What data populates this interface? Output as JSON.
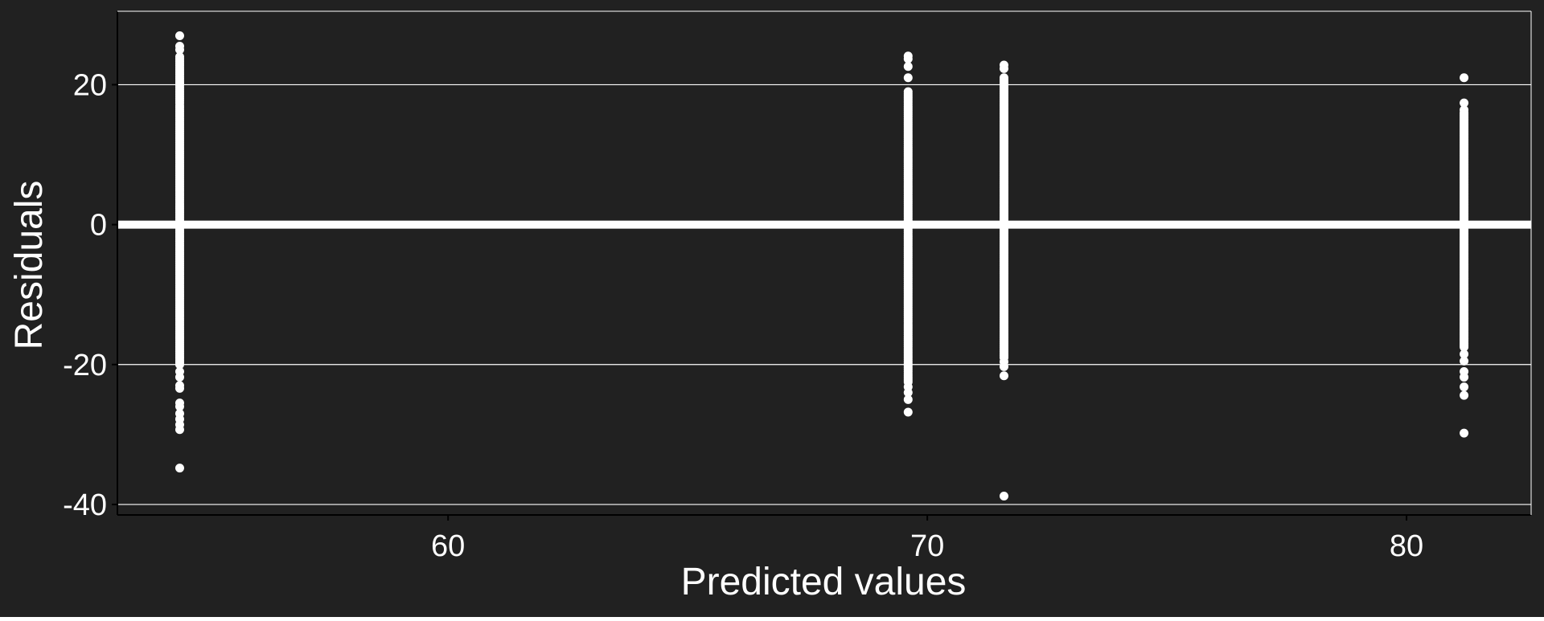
{
  "chart_data": {
    "type": "scatter",
    "title": "",
    "xlabel": "Predicted values",
    "ylabel": "Residuals",
    "xlim": [
      53.1,
      82.6
    ],
    "ylim": [
      -41.5,
      30.5
    ],
    "x_ticks": [
      60,
      70,
      80
    ],
    "y_ticks": [
      -40,
      -20,
      0,
      20
    ],
    "x_tick_labels": [
      "60",
      "70",
      "80"
    ],
    "y_tick_labels": [
      "-40",
      "-20",
      "0",
      "20"
    ],
    "grid": "horizontal",
    "reference_line": {
      "y": 0
    },
    "colors": {
      "background": "#212121",
      "points": "#ffffff",
      "grid": "#ffffff",
      "text": "#ffffff"
    },
    "series": [
      {
        "x": 54.4,
        "dense_range": [
          -20,
          24
        ],
        "outliers": [
          27,
          25.5,
          25,
          -21,
          -21.8,
          -23,
          -23.4,
          -25.5,
          -26,
          -27,
          -27.8,
          -28.6,
          -29.3,
          -34.8
        ]
      },
      {
        "x": 69.6,
        "dense_range": [
          -22.5,
          19
        ],
        "outliers": [
          24.1,
          23.7,
          22.6,
          21,
          -23.2,
          -24,
          -25,
          -26.8
        ]
      },
      {
        "x": 71.6,
        "dense_range": [
          -19,
          21
        ],
        "outliers": [
          22.8,
          22.3,
          -19.6,
          -20.3,
          -21.6,
          -38.8
        ]
      },
      {
        "x": 81.2,
        "dense_range": [
          -17.5,
          16
        ],
        "outliers": [
          21,
          17.4,
          16.4,
          -18.5,
          -19.5,
          -21,
          -21.8,
          -23.2,
          -24.4,
          -29.8
        ]
      }
    ]
  }
}
